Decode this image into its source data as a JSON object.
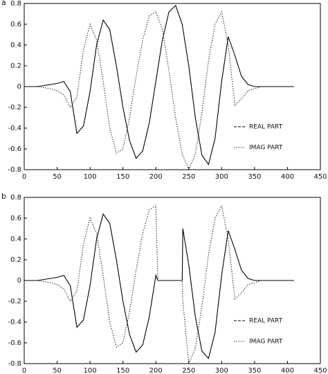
{
  "chart_data": [
    {
      "type": "line",
      "label": "a",
      "xlim": [
        0,
        450
      ],
      "ylim": [
        -0.8,
        0.8
      ],
      "xticks": [
        0,
        50,
        100,
        150,
        200,
        250,
        300,
        350,
        400,
        450
      ],
      "yticks": [
        -0.8,
        -0.6,
        -0.4,
        -0.2,
        0,
        0.2,
        0.4,
        0.6,
        0.8
      ],
      "legend": "lower right",
      "x": [
        0,
        10,
        20,
        30,
        40,
        50,
        60,
        70,
        80,
        90,
        100,
        110,
        120,
        130,
        140,
        150,
        160,
        170,
        180,
        190,
        200,
        210,
        220,
        230,
        240,
        250,
        260,
        270,
        280,
        290,
        300,
        310,
        320,
        330,
        340,
        350,
        360,
        370,
        380,
        390,
        400,
        410
      ],
      "series": [
        {
          "name": "REAL PART",
          "color": "#000000",
          "line_style": "solid",
          "values": [
            0,
            0,
            0,
            0.01,
            0.02,
            0.03,
            0.05,
            -0.05,
            -0.45,
            -0.38,
            -0.05,
            0.4,
            0.64,
            0.55,
            0.2,
            -0.2,
            -0.52,
            -0.69,
            -0.62,
            -0.35,
            0.05,
            0.45,
            0.72,
            0.78,
            0.6,
            0.2,
            -0.3,
            -0.66,
            -0.75,
            -0.5,
            0.05,
            0.48,
            0.3,
            0.1,
            0.02,
            0,
            0,
            0,
            0,
            0,
            0,
            0
          ]
        },
        {
          "name": "IMAG PART",
          "color": "#000000",
          "line_style": "dotted",
          "values": [
            0,
            0,
            0,
            -0.01,
            -0.02,
            -0.04,
            -0.08,
            -0.2,
            -0.1,
            0.35,
            0.6,
            0.45,
            0.05,
            -0.4,
            -0.64,
            -0.6,
            -0.3,
            0.1,
            0.45,
            0.68,
            0.72,
            0.55,
            0.15,
            -0.3,
            -0.65,
            -0.8,
            -0.65,
            -0.25,
            0.25,
            0.6,
            0.72,
            0.4,
            -0.18,
            -0.12,
            -0.04,
            -0.02,
            0,
            0,
            0,
            0,
            0,
            0
          ]
        }
      ]
    },
    {
      "type": "line",
      "label": "b",
      "xlim": [
        0,
        450
      ],
      "ylim": [
        -0.8,
        0.8
      ],
      "xticks": [
        0,
        50,
        100,
        150,
        200,
        250,
        300,
        350,
        400,
        450
      ],
      "yticks": [
        -0.8,
        -0.6,
        -0.4,
        -0.2,
        0,
        0.2,
        0.4,
        0.6,
        0.8
      ],
      "legend": "lower right",
      "x": [
        0,
        10,
        20,
        30,
        40,
        50,
        60,
        70,
        80,
        90,
        100,
        110,
        120,
        130,
        140,
        150,
        160,
        170,
        180,
        190,
        200,
        203,
        210,
        220,
        230,
        240,
        241,
        250,
        260,
        270,
        280,
        290,
        300,
        310,
        320,
        330,
        340,
        350,
        360,
        370,
        380,
        390,
        400,
        410
      ],
      "series": [
        {
          "name": "REAL PART",
          "color": "#000000",
          "line_style": "solid",
          "values": [
            0,
            0,
            0,
            0.01,
            0.02,
            0.03,
            0.05,
            -0.05,
            -0.45,
            -0.38,
            -0.05,
            0.4,
            0.64,
            0.55,
            0.2,
            -0.2,
            -0.52,
            -0.69,
            -0.62,
            -0.35,
            0.05,
            0,
            0,
            0,
            0,
            0,
            0.5,
            0.15,
            -0.35,
            -0.68,
            -0.75,
            -0.5,
            0.05,
            0.48,
            0.3,
            0.1,
            0.02,
            0,
            0,
            0,
            0,
            0,
            0,
            0
          ]
        },
        {
          "name": "IMAG PART",
          "color": "#000000",
          "line_style": "dotted",
          "values": [
            0,
            0,
            0,
            -0.01,
            -0.02,
            -0.04,
            -0.08,
            -0.2,
            -0.1,
            0.35,
            0.6,
            0.45,
            0.05,
            -0.4,
            -0.64,
            -0.6,
            -0.3,
            0.1,
            0.45,
            0.68,
            0.72,
            0,
            0,
            0,
            0,
            0,
            -0.2,
            -0.8,
            -0.65,
            -0.25,
            0.25,
            0.6,
            0.72,
            0.4,
            -0.18,
            -0.12,
            -0.04,
            -0.02,
            0,
            0,
            0,
            0,
            0,
            0
          ]
        }
      ]
    }
  ]
}
